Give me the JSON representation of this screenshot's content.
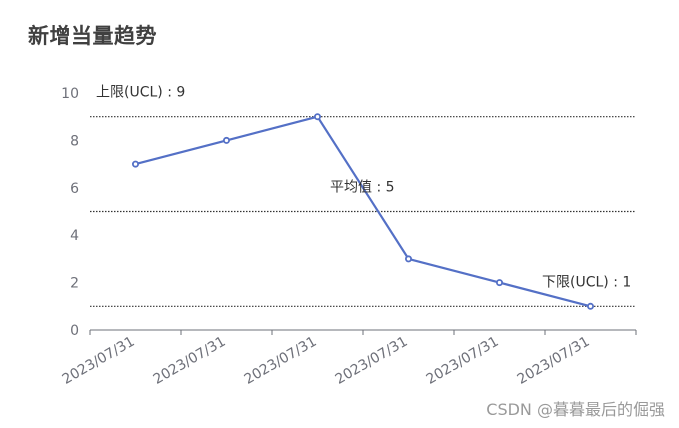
{
  "chart_data": {
    "type": "line",
    "title": "新增当量趋势",
    "categories": [
      "2023/07/31",
      "2023/07/31",
      "2023/07/31",
      "2023/07/31",
      "2023/07/31",
      "2023/07/31"
    ],
    "series": [
      {
        "values": [
          7,
          8,
          9,
          3,
          2,
          1
        ]
      }
    ],
    "ylim": [
      0,
      10
    ],
    "y_ticks": [
      "0",
      "2",
      "4",
      "6",
      "8",
      "10"
    ],
    "reference_lines": [
      {
        "value": 9,
        "label": "上限(UCL) : 9"
      },
      {
        "value": 5,
        "label": "平均值 : 5"
      },
      {
        "value": 1,
        "label": "下限(UCL) : 1"
      }
    ],
    "colors": {
      "series": "#5470c6",
      "reference": "#333333",
      "axis": "#6e7079",
      "tick_text": "#6e7079",
      "label_text": "#333333"
    },
    "grid": false,
    "legend": "none"
  },
  "watermark": "CSDN @暮暮最后的倔强"
}
